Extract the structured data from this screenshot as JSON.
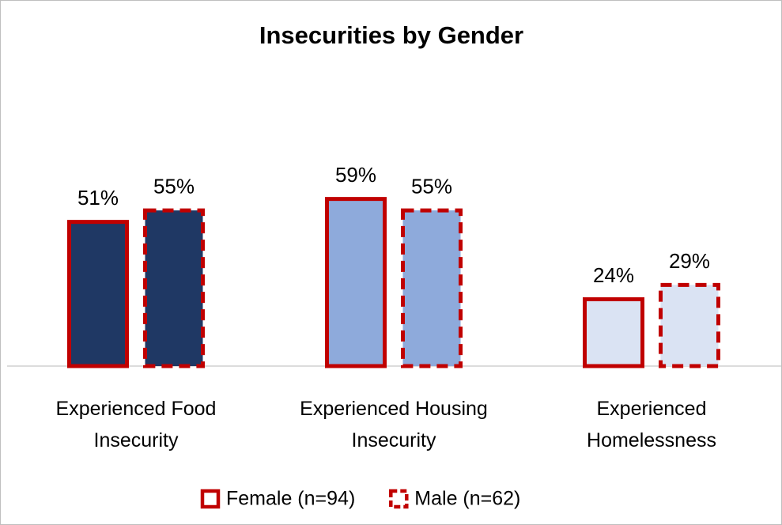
{
  "chart_data": {
    "type": "bar",
    "title": "Insecurities by Gender",
    "categories": [
      "Experienced Food Insecurity",
      "Experienced Housing Insecurity",
      "Experienced Homelessness"
    ],
    "category_colors": [
      "#1f3864",
      "#8eaadb",
      "#dae3f3"
    ],
    "series": [
      {
        "name": "Female (n=94)",
        "color": "#c00000",
        "border_style": "solid",
        "values": [
          51,
          59,
          24
        ],
        "value_labels": [
          "51%",
          "59%",
          "24%"
        ]
      },
      {
        "name": "Male (n=62)",
        "color": "#c00000",
        "border_style": "dashed",
        "values": [
          55,
          55,
          29
        ],
        "value_labels": [
          "55%",
          "55%",
          "29%"
        ]
      }
    ],
    "ylim": [
      0,
      80
    ],
    "legend": "bottom"
  }
}
